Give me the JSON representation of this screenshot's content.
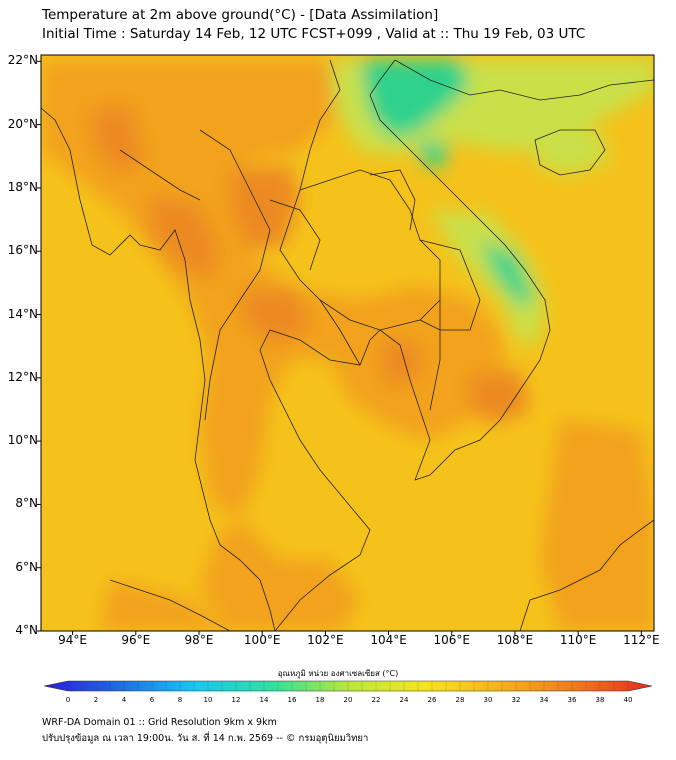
{
  "title_line1": "Temperature at 2m above ground(°C) - [Data Assimilation]",
  "title_line2": "Initial Time : Saturday 14 Feb, 12 UTC FCST+099 , Valid at :: Thu 19 Feb, 03 UTC",
  "map": {
    "lat_ticks": [
      "22°N",
      "20°N",
      "18°N",
      "16°N",
      "14°N",
      "12°N",
      "10°N",
      "8°N",
      "6°N",
      "4°N"
    ],
    "lon_ticks": [
      "94°E",
      "96°E",
      "98°E",
      "100°E",
      "102°E",
      "104°E",
      "106°E",
      "108°E",
      "110°E",
      "112°E"
    ],
    "lat_values": [
      22,
      20,
      18,
      16,
      14,
      12,
      10,
      8,
      6,
      4
    ],
    "lon_values": [
      94,
      96,
      98,
      100,
      102,
      104,
      106,
      108,
      110,
      112
    ],
    "lat_range": [
      4,
      22.2
    ],
    "lon_range": [
      93,
      112.4
    ],
    "field_colors": {
      "background": "#f5c21b",
      "warm": "#f2a21c",
      "hot": "#ec8a22",
      "cool": "#c9e04a",
      "cold": "#2fd28c"
    }
  },
  "colorbar": {
    "title": "อุณหภูมิ หน่วย องศาเซลเซียส (°C)",
    "ticks": [
      "0",
      "2",
      "4",
      "6",
      "8",
      "10",
      "12",
      "14",
      "16",
      "18",
      "20",
      "22",
      "24",
      "26",
      "28",
      "30",
      "32",
      "34",
      "36",
      "38",
      "40"
    ],
    "min": 0,
    "max": 40,
    "colors": [
      "#2c1bd6",
      "#1e6ce6",
      "#17c8f2",
      "#2ee0a0",
      "#b8e83a",
      "#f5e61e",
      "#f7b21a",
      "#f07a1c",
      "#e82a20"
    ]
  },
  "footer_line1": "WRF-DA Domain 01 :: Grid Resolution 9km x 9km",
  "footer_line2": "ปรับปรุงข้อมูล ณ เวลา 19:00น. วัน ส. ที่ 14 ก.พ. 2569 -- © กรมอุตุนิยมวิทยา"
}
